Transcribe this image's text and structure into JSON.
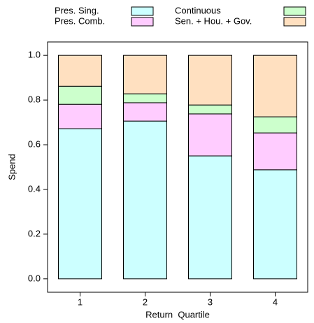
{
  "chart_data": {
    "type": "stacked_bar",
    "categories": [
      "1",
      "2",
      "3",
      "4"
    ],
    "series": [
      {
        "name": "Pres. Sing.",
        "color": "#ccffff",
        "values": [
          0.672,
          0.706,
          0.55,
          0.488
        ]
      },
      {
        "name": "Pres. Comb.",
        "color": "#ffccff",
        "values": [
          0.109,
          0.082,
          0.188,
          0.165
        ]
      },
      {
        "name": "Continuous",
        "color": "#ccffcc",
        "values": [
          0.081,
          0.04,
          0.04,
          0.072
        ]
      },
      {
        "name": "Sen. + Hou. + Gov.",
        "color": "#ffe0c0",
        "values": [
          0.138,
          0.172,
          0.222,
          0.275
        ]
      }
    ],
    "x_label": "Return  Quartile",
    "y_label": "Spend",
    "ylim": [
      -0.06,
      1.06
    ],
    "yticks": [
      {
        "value": 0,
        "label": "0.0"
      },
      0.2,
      0.4,
      0.6,
      0.8,
      {
        "value": 1,
        "label": "1.0"
      }
    ]
  }
}
